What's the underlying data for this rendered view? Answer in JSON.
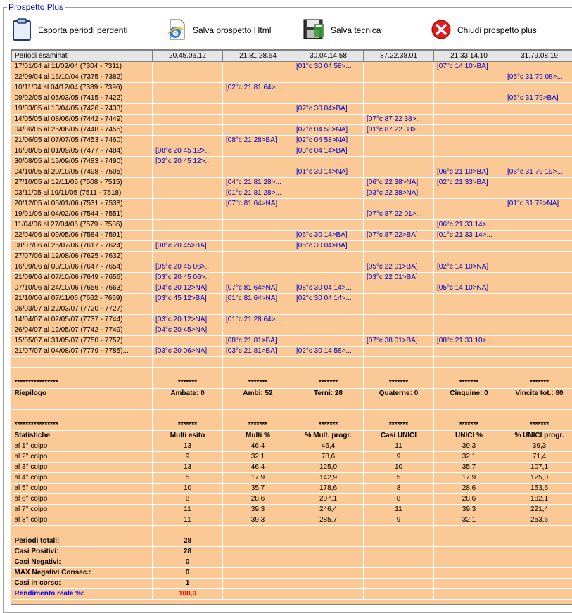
{
  "group_title": "Prospetto Plus",
  "toolbar": {
    "export": "Esporta periodi perdenti",
    "html": "Salva prospetto Html",
    "tech": "Salva tecnica",
    "close": "Chiudi prospetto plus"
  },
  "header": [
    "Periodi esaminati",
    "20.45.06.12",
    "21.81.28.64",
    "30.04.14.58",
    "87.22.38.01",
    "21.33.14.10",
    "31.79.08.19"
  ],
  "rows": [
    [
      "17/01/04 al 11/02/04  (7304 - 7311)",
      "",
      "",
      "[01°c 30 04 58>...",
      "",
      "[07°c 14 10>BA]",
      ""
    ],
    [
      "22/09/04 al 16/10/04  (7375 - 7382)",
      "",
      "",
      "",
      "",
      "",
      "[05°c 31 79 08>..."
    ],
    [
      "10/11/04 al 04/12/04  (7389 - 7396)",
      "",
      "[02°c 21 81 64>...",
      "",
      "",
      "",
      ""
    ],
    [
      "09/02/05 al 05/03/05  (7415 - 7422)",
      "",
      "",
      "",
      "",
      "",
      "[05°c 31 79>BA]"
    ],
    [
      "19/03/05 al 13/04/05  (7426 - 7433)",
      "",
      "",
      "[07°c 30 04>BA]",
      "",
      "",
      ""
    ],
    [
      "14/05/05 al 08/06/05  (7442 - 7449)",
      "",
      "",
      "",
      "[07°c 87 22 38>...",
      "",
      ""
    ],
    [
      "04/06/05 al 25/06/05  (7448 - 7455)",
      "",
      "",
      "[07°c 04 58>NA]",
      "[01°c 87 22 38>...",
      "",
      ""
    ],
    [
      "21/06/05 al 07/07/05  (7453 - 7460)",
      "",
      "[08°c 21 28>BA]",
      "[02°c 04 58>NA]",
      "",
      "",
      ""
    ],
    [
      "16/08/05 al 01/09/05  (7477 - 7484)",
      "[08°c 20 45 12>...",
      "",
      "[03°c 04 14>BA]",
      "",
      "",
      ""
    ],
    [
      "30/08/05 al 15/09/05  (7483 - 7490)",
      "[02°c 20 45 12>...",
      "",
      "",
      "",
      "",
      ""
    ],
    [
      "04/10/05 al 20/10/05  (7498 - 7505)",
      "",
      "",
      "[01°c 30 14>NA]",
      "",
      "[06°c 21 10>BA]",
      "[08°c 31 79 19>..."
    ],
    [
      "27/10/05 al 12/11/05  (7508 - 7515)",
      "",
      "[04°c 21 81 28>...",
      "",
      "[06°c 22 38>NA]",
      "[02°c 21 33>BA]",
      ""
    ],
    [
      "03/11/05 al 19/11/05  (7511 - 7518)",
      "",
      "[01°c 21 81 28>...",
      "",
      "[03°c 22 38>NA]",
      "",
      ""
    ],
    [
      "20/12/05 al 05/01/06  (7531 - 7538)",
      "",
      "[07°c 81 64>NA]",
      "",
      "",
      "",
      "[01°c 31 79>NA]"
    ],
    [
      "19/01/06 al 04/02/06  (7544 - 7551)",
      "",
      "",
      "",
      "[07°c 87 22 01>...",
      "",
      ""
    ],
    [
      "11/04/06 al 27/04/06  (7579 - 7586)",
      "",
      "",
      "",
      "",
      "[06°c 21 33 14>...",
      ""
    ],
    [
      "22/04/06 al 09/05/06  (7584 - 7591)",
      "",
      "",
      "[06°c 30 14>BA]",
      "[07°c 87 22>BA]",
      "[01°c 21 33 14>...",
      ""
    ],
    [
      "08/07/06 al 25/07/06  (7617 - 7624)",
      "[08°c 20 45>BA]",
      "",
      "[05°c 30 04>BA]",
      "",
      "",
      ""
    ],
    [
      "27/07/06 al 12/08/06  (7625 - 7632)",
      "",
      "",
      "",
      "",
      "",
      ""
    ],
    [
      "16/09/06 al 03/10/06  (7647 - 7654)",
      "[05°c 20 45 06>...",
      "",
      "",
      "[05°c 22 01>BA]",
      "[02°c 14 10>NA]",
      ""
    ],
    [
      "21/09/06 al 07/10/06  (7649 - 7656)",
      "[03°c 20 45 06>...",
      "",
      "",
      "[03°c 22 01>BA]",
      "",
      ""
    ],
    [
      "07/10/06 al 24/10/06  (7656 - 7663)",
      "[04°c 20 12>NA]",
      "[07°c 81 64>NA]",
      "[08°c 30 04 14>...",
      "",
      "[05°c 14 10>NA]",
      ""
    ],
    [
      "21/10/06 al 07/11/06  (7662 - 7669)",
      "[03°c 45 12>BA]",
      "[01°c 81 64>NA]",
      "[02°c 30 04 14>...",
      "",
      "",
      ""
    ],
    [
      "06/03/07 al 22/03/07  (7720 - 7727)",
      "",
      "",
      "",
      "",
      "",
      ""
    ],
    [
      "14/04/07 al 02/05/07  (7737 - 7744)",
      "[03°c 20 12>NA]",
      "[01°c 21 28 64>...",
      "",
      "",
      "",
      ""
    ],
    [
      "26/04/07 al 12/05/07  (7742 - 7749)",
      "[04°c 20 45>NA]",
      "",
      "",
      "",
      "",
      ""
    ],
    [
      "15/05/07 al 31/05/07  (7750 - 7757)",
      "",
      "[08°c 21 81>BA]",
      "",
      "[07°c 38 01>BA]",
      "[08°c 21 33 10>...",
      ""
    ],
    [
      "21/07/07 al 04/08/07  (7779 - 7785)...",
      "[03°c 20 06>NA]",
      "[03°c 21 81>BA]",
      "[02°c 30 14 58>...",
      "",
      "",
      ""
    ]
  ],
  "stars_left": "****************",
  "stars": "*******",
  "riepilogo": [
    "Riepilogo",
    "Ambate: 0",
    "Ambi: 52",
    "Terni: 28",
    "Quaterne: 0",
    "Cinquine: 0",
    "Vincite tot.: 80"
  ],
  "stat_header": [
    "Statistiche",
    "Multi esito",
    "Multi %",
    "% Mult. progr.",
    "Casi UNICI",
    "UNICI %",
    "% UNICI progr."
  ],
  "stats": [
    [
      "al 1° colpo",
      "13",
      "46,4",
      "46,4",
      "11",
      "39,3",
      "39,3"
    ],
    [
      "al 2° colpo",
      "9",
      "32,1",
      "78,6",
      "9",
      "32,1",
      "71,4"
    ],
    [
      "al 3° colpo",
      "13",
      "46,4",
      "125,0",
      "10",
      "35,7",
      "107,1"
    ],
    [
      "al 4° colpo",
      "5",
      "17,9",
      "142,9",
      "5",
      "17,9",
      "125,0"
    ],
    [
      "al 5° colpo",
      "10",
      "35,7",
      "178,6",
      "8",
      "28,6",
      "153,6"
    ],
    [
      "al 6° colpo",
      "8",
      "28,6",
      "207,1",
      "8",
      "28,6",
      "182,1"
    ],
    [
      "al 7° colpo",
      "11",
      "39,3",
      "246,4",
      "11",
      "39,3",
      "221,4"
    ],
    [
      "al 8° colpo",
      "11",
      "39,3",
      "285,7",
      "9",
      "32,1",
      "253,6"
    ]
  ],
  "totals": [
    [
      "Periodi totali:",
      "28"
    ],
    [
      "Casi Positivi:",
      "28"
    ],
    [
      "Casi Negativi:",
      "0"
    ],
    [
      "MAX Negativi Consec.:",
      "0"
    ],
    [
      "Casi in corso:",
      "1"
    ]
  ],
  "rendimento": [
    "Rendimento reale %:",
    "100,0"
  ],
  "colors": {
    "grid_bg": "#fac996",
    "header_bg": "#e6e6e6",
    "link_blue": "#0000cc",
    "red": "#ff0000"
  }
}
